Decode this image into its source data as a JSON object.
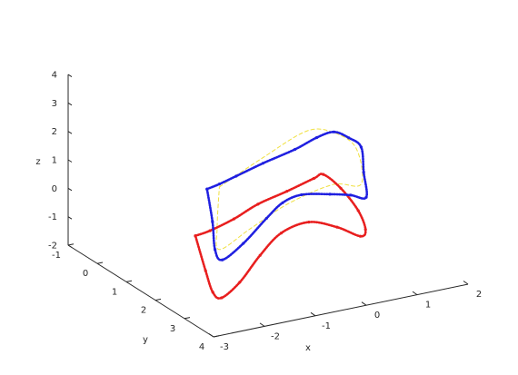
{
  "chart_data": {
    "type": "line",
    "projection": "3d",
    "title": "",
    "xlabel": "x",
    "ylabel": "y",
    "zlabel": "z",
    "xlim": [
      -3,
      2
    ],
    "ylim": [
      -1,
      4
    ],
    "zlim": [
      -2,
      4
    ],
    "x_ticks": [
      "-3",
      "-2",
      "-1",
      "0",
      "1",
      "2"
    ],
    "y_ticks": [
      "-1",
      "0",
      "1",
      "2",
      "3",
      "4"
    ],
    "z_ticks": [
      "-2",
      "-1",
      "0",
      "1",
      "2",
      "3",
      "4"
    ],
    "grid": false,
    "legend": "none",
    "colors": {
      "blue": "#1f1fe0",
      "red": "#e81e1e",
      "yellow": "#f0e040",
      "axis": "#262626"
    },
    "series": [
      {
        "color": "blue",
        "style": "thick-dotted",
        "points": [
          [
            -2.9,
            3.6,
            2.9
          ],
          [
            -2.6,
            3.5,
            2.9
          ],
          [
            -2.1,
            3.2,
            2.8
          ],
          [
            -1.4,
            2.9,
            2.8
          ],
          [
            -0.6,
            2.6,
            2.8
          ],
          [
            0.0,
            2.3,
            2.8
          ],
          [
            0.45,
            2.1,
            2.7
          ],
          [
            0.8,
            2.0,
            2.3
          ],
          [
            1.1,
            1.9,
            1.8
          ],
          [
            1.15,
            1.9,
            0.9
          ],
          [
            1.2,
            1.9,
            0.0
          ],
          [
            0.95,
            1.8,
            0.1
          ],
          [
            0.6,
            1.7,
            0.2
          ],
          [
            0.1,
            1.6,
            0.3
          ],
          [
            -0.5,
            2.0,
            0.5
          ],
          [
            -1.1,
            2.5,
            0.5
          ],
          [
            -1.9,
            3.1,
            0.3
          ],
          [
            -2.6,
            3.6,
            0.3
          ],
          [
            -2.8,
            3.7,
            0.8
          ],
          [
            -2.85,
            3.7,
            1.8
          ],
          [
            -2.9,
            3.6,
            2.9
          ]
        ]
      },
      {
        "color": "red",
        "style": "thick-dotted",
        "points": [
          [
            -3.3,
            3.9,
            1.6
          ],
          [
            -2.9,
            3.7,
            1.5
          ],
          [
            -2.2,
            3.3,
            1.4
          ],
          [
            -1.5,
            2.9,
            1.4
          ],
          [
            -0.7,
            2.5,
            1.3
          ],
          [
            0.0,
            2.2,
            1.3
          ],
          [
            0.3,
            2.0,
            1.2
          ],
          [
            0.7,
            1.9,
            0.5
          ],
          [
            1.1,
            1.8,
            -0.5
          ],
          [
            1.3,
            1.7,
            -1.3
          ],
          [
            1.2,
            1.7,
            -1.5
          ],
          [
            0.8,
            1.6,
            -1.1
          ],
          [
            0.3,
            1.5,
            -0.8
          ],
          [
            -0.3,
            1.6,
            -0.9
          ],
          [
            -1.0,
            2.1,
            -1.1
          ],
          [
            -1.8,
            2.8,
            -1.3
          ],
          [
            -2.5,
            3.4,
            -1.2
          ],
          [
            -2.9,
            3.8,
            -0.6
          ],
          [
            -3.1,
            3.9,
            0.3
          ],
          [
            -3.3,
            3.9,
            1.6
          ]
        ]
      },
      {
        "color": "yellow",
        "style": "dashed",
        "points": [
          [
            -2.6,
            3.5,
            2.8
          ],
          [
            -1.4,
            2.9,
            3.0
          ],
          [
            -0.2,
            2.3,
            3.1
          ],
          [
            0.5,
            2.0,
            2.6
          ],
          [
            1.0,
            1.9,
            1.8
          ],
          [
            1.1,
            1.9,
            0.5
          ],
          [
            0.6,
            1.8,
            0.6
          ],
          [
            -0.5,
            2.2,
            0.6
          ],
          [
            -1.6,
            2.8,
            0.5
          ],
          [
            -2.6,
            3.5,
            0.6
          ],
          [
            -2.7,
            3.6,
            1.5
          ],
          [
            -2.6,
            3.5,
            2.8
          ]
        ]
      }
    ]
  }
}
